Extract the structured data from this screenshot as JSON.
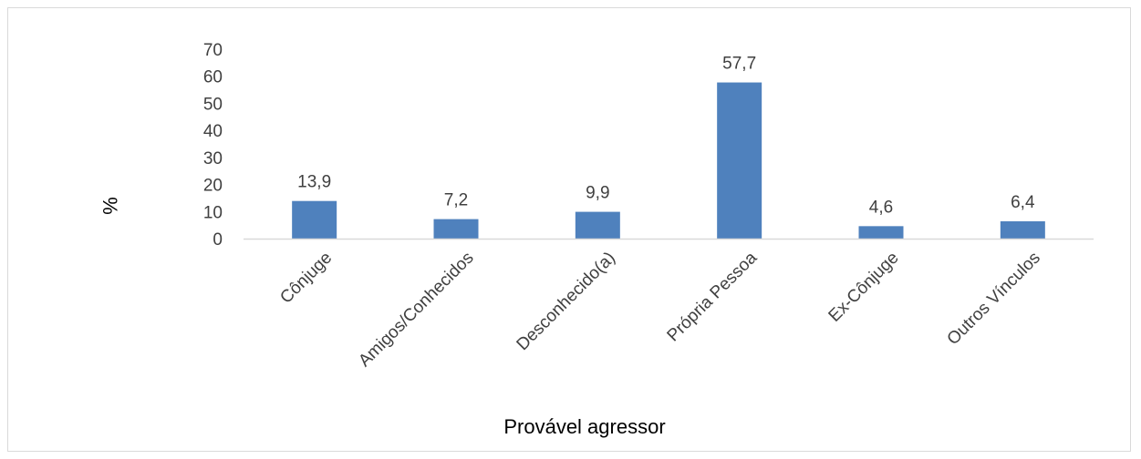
{
  "chart_data": {
    "type": "bar",
    "categories": [
      "Cônjuge",
      "Amigos/Conhecidos",
      "Desconhecido(a)",
      "Própria Pessoa",
      "Ex-Cônjuge",
      "Outros Vínculos"
    ],
    "values": [
      13.9,
      7.2,
      9.9,
      57.7,
      4.6,
      6.4
    ],
    "data_labels": [
      "13,9",
      "7,2",
      "9,9",
      "57,7",
      "4,6",
      "6,4"
    ],
    "xlabel": "Provável agressor",
    "ylabel": "%",
    "ylim": [
      0,
      70
    ],
    "yticks": [
      "0",
      "10",
      "20",
      "30",
      "40",
      "50",
      "60",
      "70"
    ],
    "grid": false,
    "legend": "none",
    "bar_color": "#4f81bd",
    "axis_color": "#d9d9d9"
  }
}
